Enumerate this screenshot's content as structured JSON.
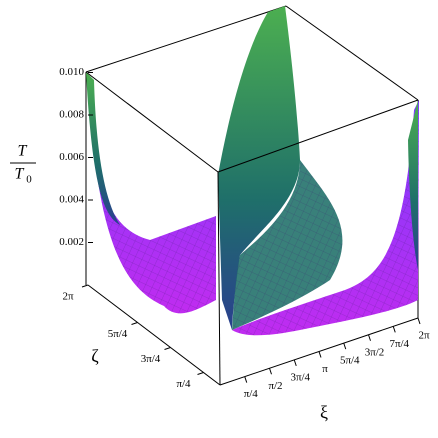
{
  "chart_data": {
    "type": "surface",
    "zlabel": {
      "numerator": "T",
      "denominator": "T",
      "denominator_subscript": "0"
    },
    "xlabel": "ξ",
    "ylabel": "ζ",
    "zlim": [
      0,
      0.01
    ],
    "zticks": [
      0.002,
      0.004,
      0.006,
      0.008,
      {
        "value": 0.01,
        "label": "0.010"
      }
    ],
    "xlim": [
      0,
      6.283185307179586
    ],
    "xticks": [
      {
        "value": 0.7853981633974483,
        "label": "π/4"
      },
      {
        "value": 1.5707963267948966,
        "label": "π/2"
      },
      {
        "value": 2.356194490192345,
        "label": "3π/4"
      },
      {
        "value": 3.141592653589793,
        "label": "π"
      },
      {
        "value": 3.9269908169872414,
        "label": "5π/4"
      },
      {
        "value": 4.71238898038469,
        "label": "3π/2"
      },
      {
        "value": 5.497787143782138,
        "label": "7π/4"
      },
      {
        "value": 6.283185307179586,
        "label": "2π"
      }
    ],
    "ylim": [
      0,
      6.283185307179586
    ],
    "yticks": [
      {
        "value": 0.7853981633974483,
        "label": "π/4"
      },
      {
        "value": 2.356194490192345,
        "label": "3π/4"
      },
      {
        "value": 3.9269908169872414,
        "label": "5π/4"
      },
      {
        "value": 6.283185307179586,
        "label": "2π"
      }
    ]
  }
}
